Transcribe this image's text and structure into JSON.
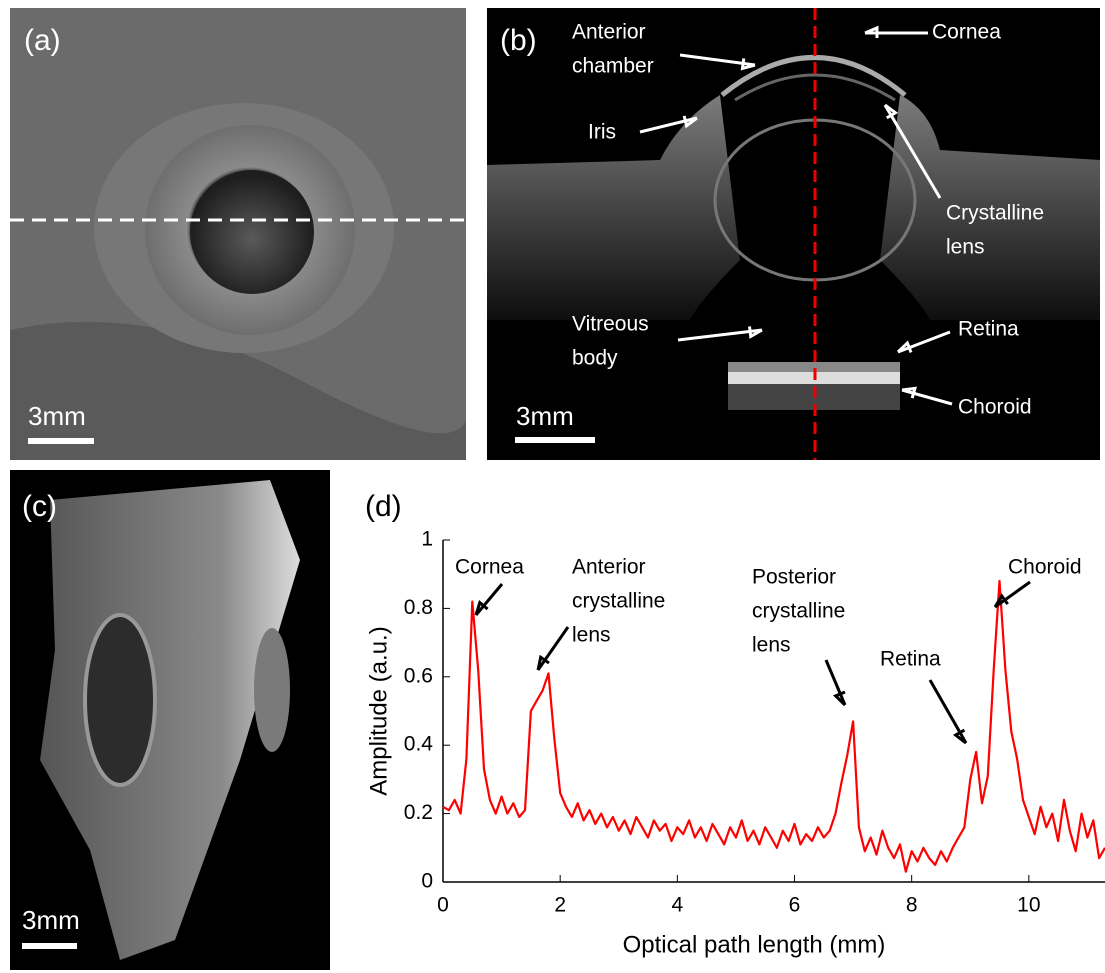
{
  "panels": {
    "a": {
      "label": "(a)",
      "scale_bar": "3mm"
    },
    "b": {
      "label": "(b)",
      "scale_bar": "3mm",
      "annotations": [
        [
          "Anterior",
          "chamber"
        ],
        [
          "Cornea"
        ],
        [
          "Iris"
        ],
        [
          "Crystalline",
          "lens"
        ],
        [
          "Vitreous",
          "body"
        ],
        [
          "Retina"
        ],
        [
          "Choroid"
        ]
      ]
    },
    "c": {
      "label": "(c)",
      "scale_bar": "3mm"
    },
    "d": {
      "label": "(d)"
    }
  },
  "chart_data": {
    "type": "line",
    "xlabel": "Optical path length (mm)",
    "ylabel": "Amplitude (a.u.)",
    "color": "#ff0000",
    "x": [
      0,
      0.1,
      0.2,
      0.3,
      0.4,
      0.5,
      0.6,
      0.7,
      0.8,
      0.9,
      1,
      1.1,
      1.2,
      1.3,
      1.4,
      1.5,
      1.6,
      1.7,
      1.8,
      1.9,
      2,
      2.1,
      2.2,
      2.3,
      2.4,
      2.5,
      2.6,
      2.7,
      2.8,
      2.9,
      3,
      3.1,
      3.2,
      3.3,
      3.4,
      3.5,
      3.6,
      3.7,
      3.8,
      3.9,
      4,
      4.1,
      4.2,
      4.3,
      4.4,
      4.5,
      4.6,
      4.7,
      4.8,
      4.9,
      5,
      5.1,
      5.2,
      5.3,
      5.4,
      5.5,
      5.6,
      5.7,
      5.8,
      5.9,
      6,
      6.1,
      6.2,
      6.3,
      6.4,
      6.5,
      6.6,
      6.7,
      6.8,
      6.9,
      7,
      7.1,
      7.2,
      7.3,
      7.4,
      7.5,
      7.6,
      7.7,
      7.8,
      7.9,
      8,
      8.1,
      8.2,
      8.3,
      8.4,
      8.5,
      8.6,
      8.7,
      8.8,
      8.9,
      9,
      9.1,
      9.2,
      9.3,
      9.4,
      9.5,
      9.6,
      9.7,
      9.8,
      9.9,
      10,
      10.1,
      10.2,
      10.3,
      10.4,
      10.5,
      10.6,
      10.7,
      10.8,
      10.9,
      11,
      11.1,
      11.2,
      11.3
    ],
    "values": [
      0.22,
      0.21,
      0.24,
      0.2,
      0.36,
      0.82,
      0.62,
      0.33,
      0.24,
      0.2,
      0.25,
      0.2,
      0.23,
      0.19,
      0.21,
      0.5,
      0.53,
      0.56,
      0.61,
      0.42,
      0.26,
      0.22,
      0.19,
      0.23,
      0.18,
      0.21,
      0.17,
      0.2,
      0.16,
      0.19,
      0.15,
      0.18,
      0.14,
      0.19,
      0.16,
      0.13,
      0.18,
      0.15,
      0.17,
      0.12,
      0.16,
      0.14,
      0.18,
      0.13,
      0.16,
      0.12,
      0.17,
      0.14,
      0.11,
      0.16,
      0.13,
      0.18,
      0.12,
      0.15,
      0.11,
      0.16,
      0.13,
      0.1,
      0.15,
      0.12,
      0.17,
      0.11,
      0.14,
      0.12,
      0.16,
      0.13,
      0.15,
      0.2,
      0.29,
      0.37,
      0.47,
      0.16,
      0.09,
      0.13,
      0.08,
      0.15,
      0.1,
      0.07,
      0.11,
      0.03,
      0.09,
      0.06,
      0.1,
      0.07,
      0.05,
      0.09,
      0.06,
      0.1,
      0.13,
      0.16,
      0.3,
      0.38,
      0.23,
      0.31,
      0.62,
      0.88,
      0.62,
      0.44,
      0.36,
      0.24,
      0.19,
      0.14,
      0.22,
      0.16,
      0.2,
      0.12,
      0.24,
      0.15,
      0.09,
      0.2,
      0.13,
      0.18,
      0.07,
      0.1
    ],
    "xlim": [
      0,
      11.3
    ],
    "ylim": [
      0,
      1
    ],
    "xticks": [
      0,
      2,
      4,
      6,
      8,
      10
    ],
    "yticks": [
      0,
      0.2,
      0.4,
      0.6,
      0.8,
      1
    ],
    "annotations": [
      [
        "Cornea"
      ],
      [
        "Anterior",
        "crystalline",
        "lens"
      ],
      [
        "Posterior",
        "crystalline",
        "lens"
      ],
      [
        "Retina"
      ],
      [
        "Choroid"
      ]
    ]
  }
}
